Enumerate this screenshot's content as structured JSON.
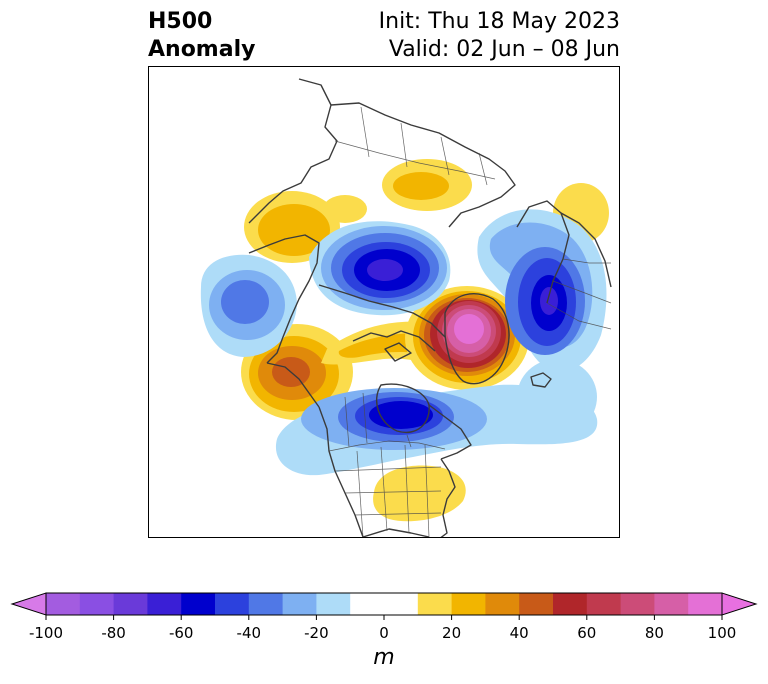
{
  "title": {
    "left_line1": "H500",
    "left_line2": "Anomaly",
    "right_line1": "Init: Thu 18 May 2023",
    "right_line2": "Valid: 02 Jun – 08 Jun"
  },
  "map": {
    "projection": "polar stereographic, North America / North Atlantic / Arctic",
    "features": [
      "coastlines",
      "country borders",
      "US state borders",
      "Canadian province borders"
    ],
    "anomaly_centers": [
      {
        "region": "Greenland / Davis Strait",
        "sign": "positive",
        "peak": 100
      },
      {
        "region": "Northern Europe / Scandinavia",
        "sign": "negative",
        "peak": -60
      },
      {
        "region": "Canadian Arctic / Beaufort",
        "sign": "negative",
        "peak": -70
      },
      {
        "region": "Hudson Bay / Eastern Canada",
        "sign": "negative",
        "peak": -60
      },
      {
        "region": "Alaska / NE Pacific",
        "sign": "positive",
        "peak": 50
      },
      {
        "region": "North Pacific",
        "sign": "negative",
        "peak": -40
      },
      {
        "region": "Eastern Siberia",
        "sign": "positive",
        "peak": 20
      },
      {
        "region": "Northern Siberia",
        "sign": "positive",
        "peak": 20
      },
      {
        "region": "Western Russia",
        "sign": "positive",
        "peak": 20
      },
      {
        "region": "Southeastern United States",
        "sign": "positive",
        "peak": 20
      }
    ]
  },
  "colorbar": {
    "unit": "m",
    "ticks": [
      "-100",
      "-80",
      "-60",
      "-40",
      "-20",
      "0",
      "20",
      "40",
      "60",
      "80",
      "100"
    ],
    "bins": [
      {
        "from": -100,
        "to": -90,
        "color": "#a35ce0"
      },
      {
        "from": -90,
        "to": -80,
        "color": "#8a4fe3"
      },
      {
        "from": -80,
        "to": -70,
        "color": "#6a3ad9"
      },
      {
        "from": -70,
        "to": -60,
        "color": "#3a1fd6"
      },
      {
        "from": -60,
        "to": -50,
        "color": "#0000cd"
      },
      {
        "from": -50,
        "to": -40,
        "color": "#2c41dd"
      },
      {
        "from": -40,
        "to": -30,
        "color": "#5078e6"
      },
      {
        "from": -30,
        "to": -20,
        "color": "#7eb0f2"
      },
      {
        "from": -20,
        "to": -10,
        "color": "#aedcf8"
      },
      {
        "from": -10,
        "to": 10,
        "color": "#ffffff"
      },
      {
        "from": 10,
        "to": 20,
        "color": "#fbdc4c"
      },
      {
        "from": 20,
        "to": 30,
        "color": "#f2b500"
      },
      {
        "from": 30,
        "to": 40,
        "color": "#e08a0a"
      },
      {
        "from": 40,
        "to": 50,
        "color": "#c85a18"
      },
      {
        "from": 50,
        "to": 60,
        "color": "#b0262a"
      },
      {
        "from": 60,
        "to": 70,
        "color": "#c03a4e"
      },
      {
        "from": 70,
        "to": 80,
        "color": "#cc4c78"
      },
      {
        "from": 80,
        "to": 90,
        "color": "#d65fa7"
      },
      {
        "from": 90,
        "to": 100,
        "color": "#e470d6"
      }
    ],
    "extend_low_color": "#d77ae8",
    "extend_high_color": "#e870e0"
  }
}
